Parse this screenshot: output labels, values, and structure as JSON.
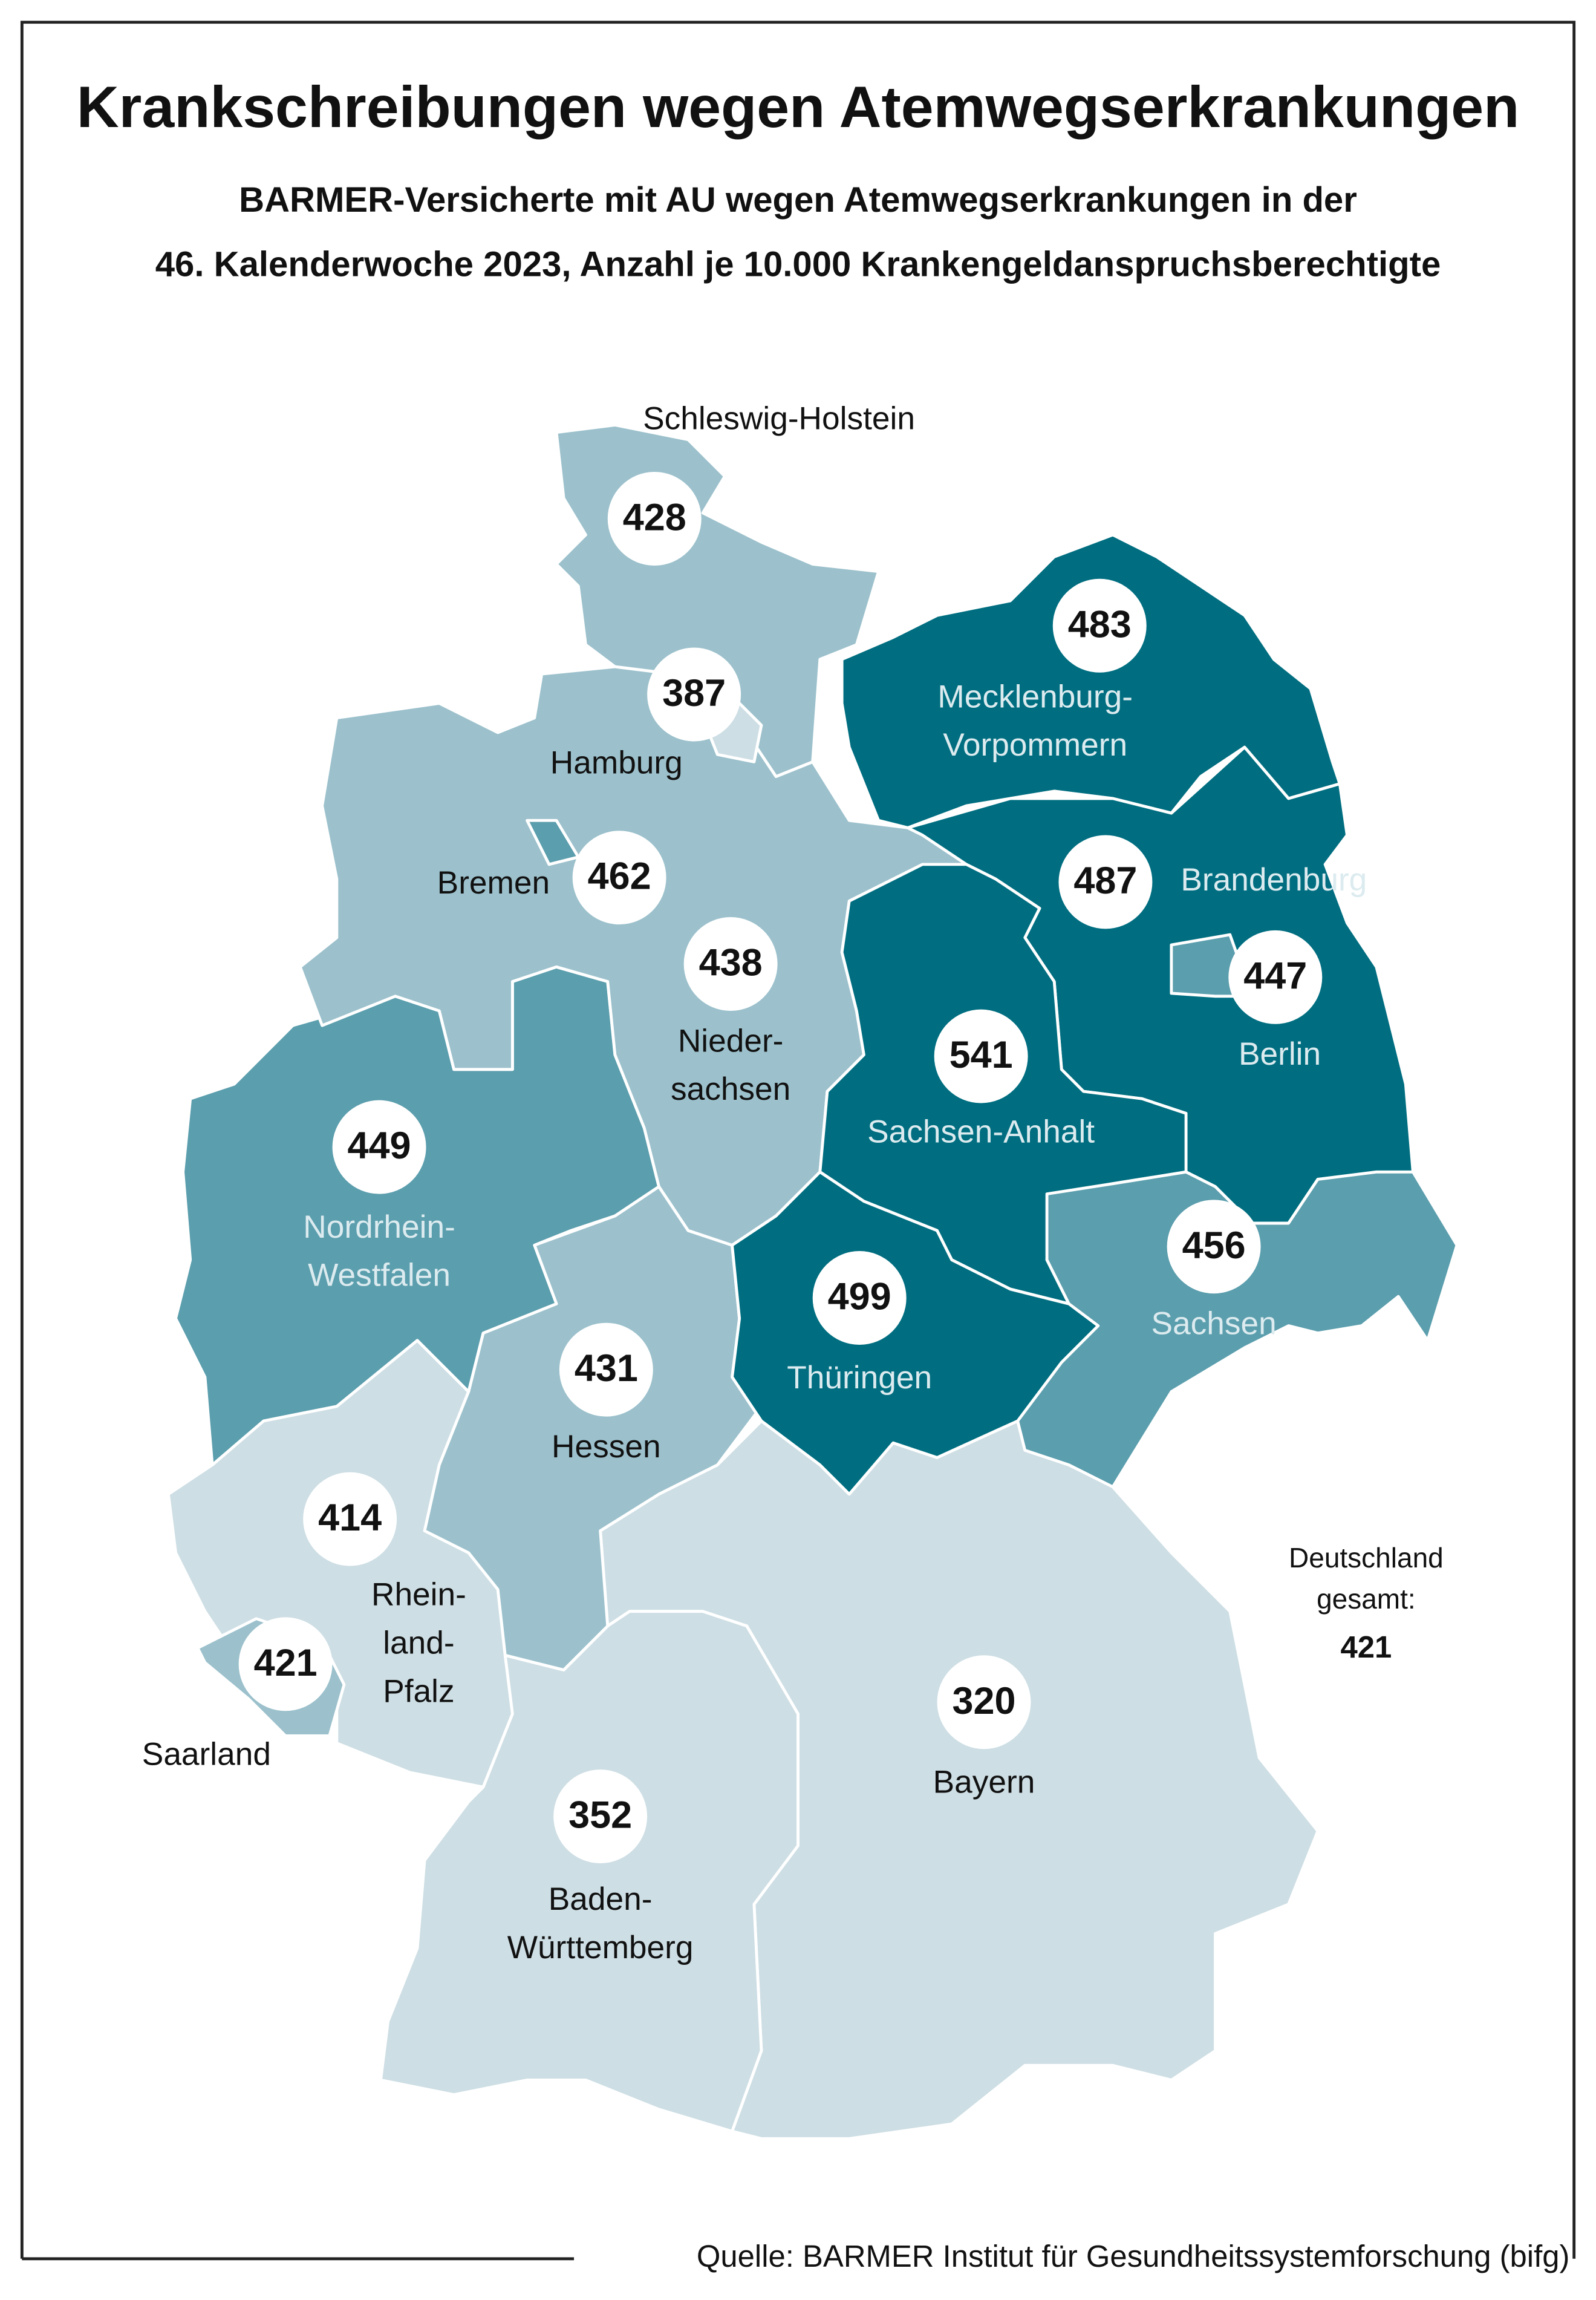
{
  "title": "Krankschreibungen wegen Atemwegserkrankungen",
  "subtitle_lines": [
    "BARMER-Versicherte mit AU wegen Atemwegserkrankungen in der",
    "46. Kalenderwoche 2023, Anzahl je 10.000 Krankengeldanspruchsberechtigte"
  ],
  "regions": [
    {
      "label_lines": [
        "Schleswig-Holstein"
      ],
      "value": 428,
      "color": "#9cc1cc"
    },
    {
      "label_lines": [
        "Hamburg"
      ],
      "value": 387,
      "color": "#cddee4"
    },
    {
      "label_lines": [
        "Mecklenburg-",
        "Vorpommern"
      ],
      "value": 483,
      "color": "#006e80"
    },
    {
      "label_lines": [
        "Bremen"
      ],
      "value": 462,
      "color": "#5b9ead"
    },
    {
      "label_lines": [
        "Brandenburg"
      ],
      "value": 487,
      "color": "#006e80"
    },
    {
      "label_lines": [
        "Nieder-",
        "sachsen"
      ],
      "value": 438,
      "color": "#9cc1cc"
    },
    {
      "label_lines": [
        "Berlin"
      ],
      "value": 447,
      "color": "#5b9ead"
    },
    {
      "label_lines": [
        "Sachsen-Anhalt"
      ],
      "value": 541,
      "color": "#006e80"
    },
    {
      "label_lines": [
        "Nordrhein-",
        "Westfalen"
      ],
      "value": 449,
      "color": "#5b9ead"
    },
    {
      "label_lines": [
        "Sachsen"
      ],
      "value": 456,
      "color": "#5b9ead"
    },
    {
      "label_lines": [
        "Thüringen"
      ],
      "value": 499,
      "color": "#006e80"
    },
    {
      "label_lines": [
        "Hessen"
      ],
      "value": 431,
      "color": "#9cc1cc"
    },
    {
      "label_lines": [
        "Rhein-",
        "land-",
        "Pfalz"
      ],
      "value": 414,
      "color": "#cddee4"
    },
    {
      "label_lines": [
        "Saarland"
      ],
      "value": 421,
      "color": "#9cc1cc"
    },
    {
      "label_lines": [
        "Bayern"
      ],
      "value": 320,
      "color": "#cddee4"
    },
    {
      "label_lines": [
        "Baden-",
        "Württemberg"
      ],
      "value": 352,
      "color": "#cddee4"
    }
  ],
  "total": {
    "label_lines": [
      "Deutschland",
      "gesamt:"
    ],
    "value": 421
  },
  "source": "Quelle: BARMER Institut für Gesundheitssystemforschung (bifg)"
}
